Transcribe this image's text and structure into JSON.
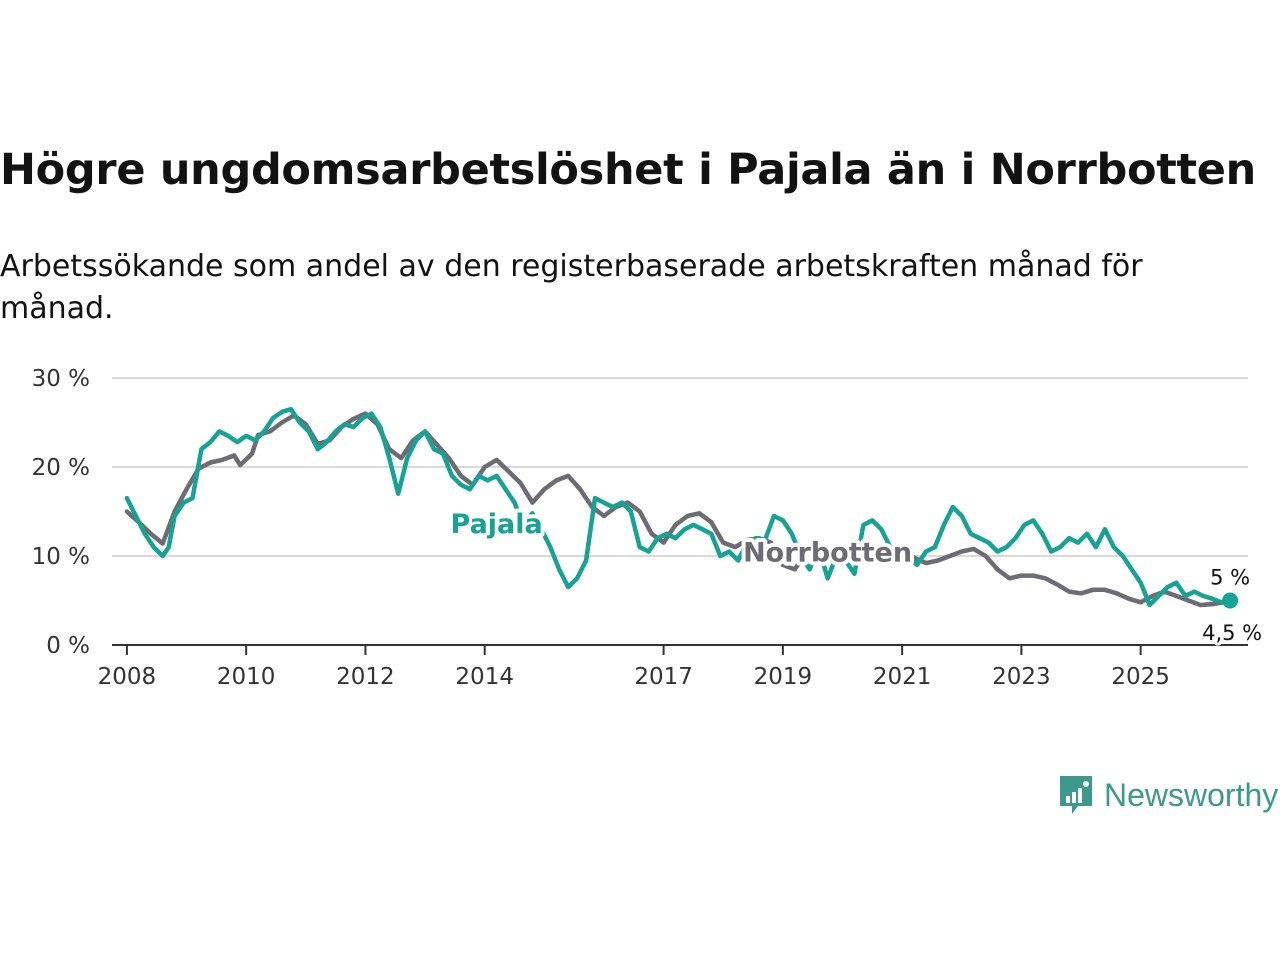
{
  "header": {
    "title": "Högre ungdomsarbetslöshet i Pajala än i Norrbotten",
    "subtitle": "Arbetssökande som andel av den registerbaserade arbetskraften månad för månad."
  },
  "brand": {
    "name": "Newsworthy",
    "color": "#3c9a8a"
  },
  "chart_data": {
    "type": "line",
    "title": "Högre ungdomsarbetslöshet i Pajala än i Norrbotten",
    "subtitle": "Arbetssökande som andel av den registerbaserade arbetskraften månad för månad.",
    "xlabel": "",
    "ylabel": "",
    "ylim": [
      0,
      30
    ],
    "xlim": [
      2007.75,
      2026.8
    ],
    "grid": true,
    "y_ticks": [
      {
        "value": 0,
        "label": "0 %"
      },
      {
        "value": 10,
        "label": "10 %"
      },
      {
        "value": 20,
        "label": "20 %"
      },
      {
        "value": 30,
        "label": "30 %"
      }
    ],
    "x_ticks": [
      {
        "value": 2008,
        "label": "2008"
      },
      {
        "value": 2010,
        "label": "2010"
      },
      {
        "value": 2012,
        "label": "2012"
      },
      {
        "value": 2014,
        "label": "2014"
      },
      {
        "value": 2017,
        "label": "2017"
      },
      {
        "value": 2019,
        "label": "2019"
      },
      {
        "value": 2021,
        "label": "2021"
      },
      {
        "value": 2023,
        "label": "2023"
      },
      {
        "value": 2025,
        "label": "2025"
      }
    ],
    "series": [
      {
        "name": "Norrbotten",
        "color": "#6d6c72",
        "end_value": 4.5,
        "end_label": "4,5 %",
        "label_at": [
          2019.75,
          9.4
        ],
        "points": [
          [
            2008.0,
            15.0
          ],
          [
            2008.2,
            13.8
          ],
          [
            2008.4,
            12.5
          ],
          [
            2008.6,
            11.4
          ],
          [
            2008.8,
            15.0
          ],
          [
            2009.0,
            17.5
          ],
          [
            2009.2,
            19.8
          ],
          [
            2009.4,
            20.5
          ],
          [
            2009.6,
            20.8
          ],
          [
            2009.8,
            21.3
          ],
          [
            2009.9,
            20.2
          ],
          [
            2010.1,
            21.5
          ],
          [
            2010.2,
            23.6
          ],
          [
            2010.4,
            24.0
          ],
          [
            2010.6,
            25.0
          ],
          [
            2010.8,
            25.8
          ],
          [
            2011.0,
            24.8
          ],
          [
            2011.2,
            22.6
          ],
          [
            2011.4,
            23.0
          ],
          [
            2011.6,
            24.5
          ],
          [
            2011.8,
            25.4
          ],
          [
            2012.0,
            26.0
          ],
          [
            2012.2,
            24.8
          ],
          [
            2012.4,
            22.0
          ],
          [
            2012.6,
            21.0
          ],
          [
            2012.8,
            23.0
          ],
          [
            2013.0,
            24.0
          ],
          [
            2013.2,
            22.5
          ],
          [
            2013.4,
            21.0
          ],
          [
            2013.6,
            19.0
          ],
          [
            2013.8,
            18.0
          ],
          [
            2014.0,
            20.0
          ],
          [
            2014.2,
            20.8
          ],
          [
            2014.4,
            19.5
          ],
          [
            2014.6,
            18.2
          ],
          [
            2014.8,
            16.0
          ],
          [
            2015.0,
            17.5
          ],
          [
            2015.2,
            18.5
          ],
          [
            2015.4,
            19.0
          ],
          [
            2015.6,
            17.5
          ],
          [
            2015.8,
            15.5
          ],
          [
            2016.0,
            14.5
          ],
          [
            2016.2,
            15.5
          ],
          [
            2016.4,
            16.0
          ],
          [
            2016.6,
            15.0
          ],
          [
            2016.8,
            12.5
          ],
          [
            2017.0,
            11.5
          ],
          [
            2017.2,
            13.5
          ],
          [
            2017.4,
            14.5
          ],
          [
            2017.6,
            14.8
          ],
          [
            2017.8,
            13.8
          ],
          [
            2018.0,
            11.5
          ],
          [
            2018.2,
            11.0
          ],
          [
            2018.4,
            11.8
          ],
          [
            2018.6,
            12.0
          ],
          [
            2018.8,
            11.5
          ],
          [
            2019.0,
            9.0
          ],
          [
            2019.2,
            8.5
          ],
          [
            2019.4,
            10.5
          ],
          [
            2019.6,
            10.8
          ],
          [
            2019.8,
            10.5
          ],
          [
            2020.0,
            10.0
          ],
          [
            2020.2,
            9.2
          ],
          [
            2020.4,
            9.5
          ],
          [
            2020.6,
            9.8
          ],
          [
            2020.8,
            10.2
          ],
          [
            2021.0,
            10.8
          ],
          [
            2021.2,
            9.8
          ],
          [
            2021.4,
            9.2
          ],
          [
            2021.6,
            9.5
          ],
          [
            2021.8,
            10.0
          ],
          [
            2022.0,
            10.5
          ],
          [
            2022.2,
            10.8
          ],
          [
            2022.4,
            10.0
          ],
          [
            2022.6,
            8.5
          ],
          [
            2022.8,
            7.5
          ],
          [
            2023.0,
            7.8
          ],
          [
            2023.2,
            7.8
          ],
          [
            2023.4,
            7.5
          ],
          [
            2023.6,
            6.8
          ],
          [
            2023.8,
            6.0
          ],
          [
            2024.0,
            5.8
          ],
          [
            2024.2,
            6.2
          ],
          [
            2024.4,
            6.2
          ],
          [
            2024.6,
            5.8
          ],
          [
            2024.8,
            5.2
          ],
          [
            2025.0,
            4.8
          ],
          [
            2025.2,
            5.5
          ],
          [
            2025.4,
            6.0
          ],
          [
            2025.6,
            5.5
          ],
          [
            2025.8,
            5.0
          ],
          [
            2026.0,
            4.5
          ],
          [
            2026.2,
            4.6
          ],
          [
            2026.4,
            4.8
          ],
          [
            2026.5,
            4.5
          ]
        ]
      },
      {
        "name": "Pajala",
        "color": "#15a394",
        "end_value": 5.0,
        "end_label": "5 %",
        "label_at": [
          2014.2,
          12.6
        ],
        "points": [
          [
            2008.0,
            16.5
          ],
          [
            2008.15,
            14.5
          ],
          [
            2008.3,
            12.5
          ],
          [
            2008.45,
            11.0
          ],
          [
            2008.6,
            10.0
          ],
          [
            2008.7,
            11.0
          ],
          [
            2008.8,
            14.5
          ],
          [
            2008.95,
            16.0
          ],
          [
            2009.1,
            16.5
          ],
          [
            2009.25,
            22.0
          ],
          [
            2009.4,
            22.8
          ],
          [
            2009.55,
            24.0
          ],
          [
            2009.7,
            23.5
          ],
          [
            2009.85,
            22.8
          ],
          [
            2010.0,
            23.5
          ],
          [
            2010.15,
            23.0
          ],
          [
            2010.3,
            24.0
          ],
          [
            2010.45,
            25.5
          ],
          [
            2010.6,
            26.2
          ],
          [
            2010.75,
            26.5
          ],
          [
            2010.9,
            25.0
          ],
          [
            2011.05,
            24.0
          ],
          [
            2011.2,
            22.0
          ],
          [
            2011.35,
            22.8
          ],
          [
            2011.5,
            24.0
          ],
          [
            2011.65,
            24.8
          ],
          [
            2011.8,
            24.5
          ],
          [
            2011.95,
            25.5
          ],
          [
            2012.1,
            26.0
          ],
          [
            2012.25,
            24.5
          ],
          [
            2012.4,
            21.0
          ],
          [
            2012.55,
            17.0
          ],
          [
            2012.7,
            21.0
          ],
          [
            2012.85,
            23.0
          ],
          [
            2013.0,
            24.0
          ],
          [
            2013.15,
            22.0
          ],
          [
            2013.3,
            21.5
          ],
          [
            2013.45,
            19.0
          ],
          [
            2013.6,
            18.0
          ],
          [
            2013.75,
            17.5
          ],
          [
            2013.9,
            19.0
          ],
          [
            2014.05,
            18.5
          ],
          [
            2014.2,
            19.0
          ],
          [
            2014.35,
            17.5
          ],
          [
            2014.5,
            16.0
          ],
          [
            2014.65,
            13.5
          ],
          [
            2014.8,
            14.8
          ],
          [
            2014.95,
            13.0
          ],
          [
            2015.1,
            11.0
          ],
          [
            2015.25,
            8.5
          ],
          [
            2015.4,
            6.5
          ],
          [
            2015.55,
            7.5
          ],
          [
            2015.7,
            9.5
          ],
          [
            2015.85,
            16.5
          ],
          [
            2016.0,
            16.0
          ],
          [
            2016.15,
            15.5
          ],
          [
            2016.3,
            16.0
          ],
          [
            2016.45,
            15.0
          ],
          [
            2016.6,
            11.0
          ],
          [
            2016.75,
            10.5
          ],
          [
            2016.9,
            12.0
          ],
          [
            2017.05,
            12.5
          ],
          [
            2017.2,
            12.0
          ],
          [
            2017.35,
            13.0
          ],
          [
            2017.5,
            13.5
          ],
          [
            2017.65,
            13.0
          ],
          [
            2017.8,
            12.5
          ],
          [
            2017.95,
            10.0
          ],
          [
            2018.1,
            10.5
          ],
          [
            2018.25,
            9.5
          ],
          [
            2018.4,
            11.5
          ],
          [
            2018.55,
            12.0
          ],
          [
            2018.7,
            11.8
          ],
          [
            2018.85,
            14.5
          ],
          [
            2019.0,
            14.0
          ],
          [
            2019.15,
            12.5
          ],
          [
            2019.3,
            10.0
          ],
          [
            2019.45,
            8.5
          ],
          [
            2019.6,
            11.0
          ],
          [
            2019.75,
            7.5
          ],
          [
            2019.9,
            10.0
          ],
          [
            2020.05,
            9.5
          ],
          [
            2020.2,
            8.0
          ],
          [
            2020.35,
            13.5
          ],
          [
            2020.5,
            14.0
          ],
          [
            2020.65,
            13.0
          ],
          [
            2020.8,
            11.0
          ],
          [
            2020.95,
            9.5
          ],
          [
            2021.1,
            10.0
          ],
          [
            2021.25,
            9.0
          ],
          [
            2021.4,
            10.5
          ],
          [
            2021.55,
            11.0
          ],
          [
            2021.7,
            13.5
          ],
          [
            2021.85,
            15.5
          ],
          [
            2022.0,
            14.5
          ],
          [
            2022.15,
            12.5
          ],
          [
            2022.3,
            12.0
          ],
          [
            2022.45,
            11.5
          ],
          [
            2022.6,
            10.5
          ],
          [
            2022.75,
            11.0
          ],
          [
            2022.9,
            12.0
          ],
          [
            2023.05,
            13.5
          ],
          [
            2023.2,
            14.0
          ],
          [
            2023.35,
            12.5
          ],
          [
            2023.5,
            10.5
          ],
          [
            2023.65,
            11.0
          ],
          [
            2023.8,
            12.0
          ],
          [
            2023.95,
            11.5
          ],
          [
            2024.1,
            12.5
          ],
          [
            2024.25,
            11.0
          ],
          [
            2024.4,
            13.0
          ],
          [
            2024.55,
            11.0
          ],
          [
            2024.7,
            10.0
          ],
          [
            2024.85,
            8.5
          ],
          [
            2025.0,
            7.0
          ],
          [
            2025.15,
            4.5
          ],
          [
            2025.3,
            5.5
          ],
          [
            2025.45,
            6.5
          ],
          [
            2025.6,
            7.0
          ],
          [
            2025.75,
            5.5
          ],
          [
            2025.9,
            6.0
          ],
          [
            2026.05,
            5.5
          ],
          [
            2026.2,
            5.2
          ],
          [
            2026.35,
            4.8
          ],
          [
            2026.5,
            5.0
          ]
        ]
      }
    ]
  }
}
